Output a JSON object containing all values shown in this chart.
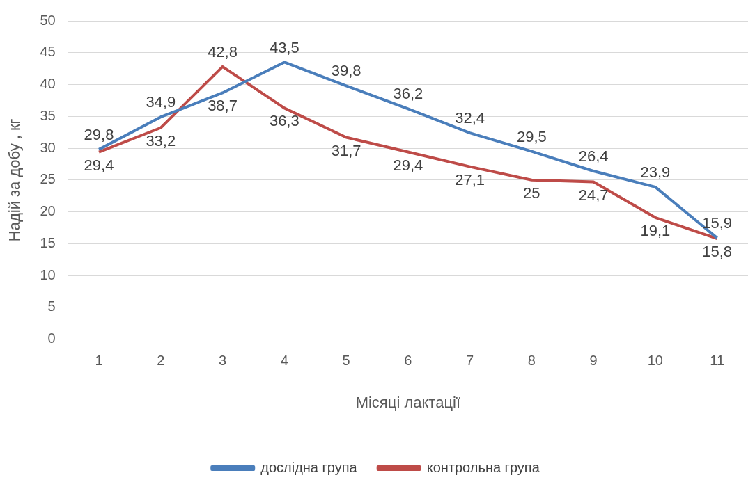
{
  "chart_data": {
    "type": "line",
    "xlabel": "Місяці лактації",
    "ylabel": "Надій за добу , кг",
    "categories": [
      "1",
      "2",
      "3",
      "4",
      "5",
      "6",
      "7",
      "8",
      "9",
      "10",
      "11"
    ],
    "series": [
      {
        "name": "дослідна група",
        "color": "#4a7ebb",
        "values": [
          29.8,
          34.9,
          38.7,
          43.5,
          39.8,
          36.2,
          32.4,
          29.5,
          26.4,
          23.9,
          15.9
        ],
        "value_labels": [
          "29,8",
          "34,9",
          "38,7",
          "43,5",
          "39,8",
          "36,2",
          "32,4",
          "29,5",
          "26,4",
          "23,9",
          "15,9"
        ]
      },
      {
        "name": "контрольна група",
        "color": "#be4b48",
        "values": [
          29.4,
          33.2,
          42.8,
          36.3,
          31.7,
          29.4,
          27.1,
          25,
          24.7,
          19.1,
          15.8
        ],
        "value_labels": [
          "29,4",
          "33,2",
          "42,8",
          "36,3",
          "31,7",
          "29,4",
          "27,1",
          "25",
          "24,7",
          "19,1",
          "15,8"
        ]
      }
    ],
    "ylim": [
      0,
      50
    ],
    "yticks": [
      0,
      5,
      10,
      15,
      20,
      25,
      30,
      35,
      40,
      45,
      50
    ],
    "grid": "y",
    "legend": "bottom",
    "marker": "none",
    "line_style": "solid"
  }
}
